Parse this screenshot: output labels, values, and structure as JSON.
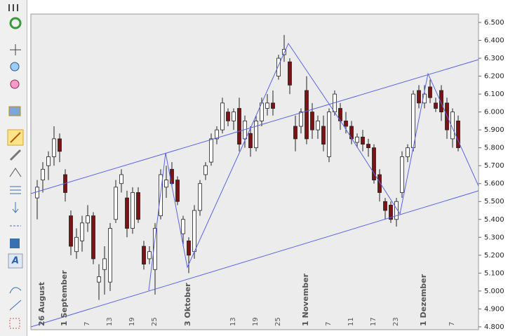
{
  "chart_data": {
    "type": "candlestick",
    "categories": [
      "26 August",
      null,
      null,
      null,
      "1 September",
      null,
      null,
      null,
      "7",
      null,
      null,
      null,
      "13",
      null,
      null,
      null,
      "19",
      null,
      null,
      null,
      "25",
      null,
      null,
      null,
      null,
      null,
      "3 Oktober",
      null,
      null,
      null,
      null,
      null,
      null,
      null,
      "13",
      null,
      null,
      null,
      "19",
      null,
      null,
      null,
      "25",
      null,
      null,
      null,
      null,
      "1 November",
      null,
      null,
      null,
      "7",
      null,
      null,
      null,
      "11",
      null,
      null,
      null,
      "17",
      null,
      null,
      null,
      "23",
      null,
      null,
      null,
      null,
      "1 Dezember",
      null,
      null,
      null,
      null,
      "7",
      null,
      null
    ],
    "ohlc": [
      [
        5.52,
        5.62,
        5.4,
        5.58
      ],
      [
        5.62,
        5.72,
        5.55,
        5.68
      ],
      [
        5.7,
        5.78,
        5.62,
        5.75
      ],
      [
        5.75,
        5.92,
        5.7,
        5.85
      ],
      [
        5.85,
        5.88,
        5.72,
        5.78
      ],
      [
        5.65,
        5.68,
        5.5,
        5.55
      ],
      [
        5.42,
        5.45,
        5.2,
        5.25
      ],
      [
        5.22,
        5.35,
        5.18,
        5.3
      ],
      [
        5.28,
        5.42,
        5.22,
        5.38
      ],
      [
        5.38,
        5.48,
        5.33,
        5.42
      ],
      [
        5.42,
        5.44,
        5.15,
        5.18
      ],
      [
        5.05,
        5.15,
        4.95,
        5.08
      ],
      [
        5.12,
        5.25,
        4.98,
        5.18
      ],
      [
        5.05,
        5.38,
        5.0,
        5.35
      ],
      [
        5.4,
        5.62,
        5.38,
        5.58
      ],
      [
        5.6,
        5.68,
        5.55,
        5.65
      ],
      [
        5.52,
        5.56,
        5.3,
        5.35
      ],
      [
        5.35,
        5.58,
        5.32,
        5.55
      ],
      [
        5.55,
        5.58,
        5.38,
        5.4
      ],
      [
        5.25,
        5.28,
        5.12,
        5.15
      ],
      [
        5.18,
        5.25,
        5.15,
        5.22
      ],
      [
        5.12,
        5.38,
        4.98,
        5.35
      ],
      [
        5.42,
        5.68,
        5.4,
        5.65
      ],
      [
        5.58,
        5.7,
        5.52,
        5.62
      ],
      [
        5.68,
        5.72,
        5.58,
        5.6
      ],
      [
        5.62,
        5.64,
        5.48,
        5.5
      ],
      [
        5.32,
        5.42,
        5.25,
        5.4
      ],
      [
        5.28,
        5.3,
        5.1,
        5.2
      ],
      [
        5.22,
        5.48,
        5.18,
        5.45
      ],
      [
        5.45,
        5.62,
        5.42,
        5.6
      ],
      [
        5.65,
        5.72,
        5.62,
        5.7
      ],
      [
        5.72,
        5.88,
        5.7,
        5.85
      ],
      [
        5.85,
        5.92,
        5.82,
        5.9
      ],
      [
        5.9,
        6.08,
        5.88,
        6.05
      ],
      [
        6.0,
        6.02,
        5.92,
        5.95
      ],
      [
        5.95,
        6.02,
        5.9,
        6.0
      ],
      [
        6.02,
        6.08,
        5.78,
        5.82
      ],
      [
        5.85,
        5.98,
        5.8,
        5.95
      ],
      [
        5.88,
        5.92,
        5.75,
        5.8
      ],
      [
        5.8,
        5.98,
        5.78,
        5.95
      ],
      [
        5.95,
        6.08,
        5.92,
        6.05
      ],
      [
        6.02,
        6.1,
        5.98,
        6.05
      ],
      [
        6.05,
        6.12,
        5.98,
        6.02
      ],
      [
        6.2,
        6.32,
        6.18,
        6.3
      ],
      [
        6.32,
        6.43,
        6.28,
        6.35
      ],
      [
        6.28,
        6.3,
        6.1,
        6.15
      ],
      [
        5.92,
        5.98,
        5.78,
        5.85
      ],
      [
        5.92,
        6.02,
        5.88,
        6.0
      ],
      [
        6.12,
        6.2,
        5.82,
        5.85
      ],
      [
        6.0,
        6.05,
        5.85,
        5.9
      ],
      [
        5.9,
        5.98,
        5.85,
        5.95
      ],
      [
        5.92,
        5.98,
        5.78,
        5.82
      ],
      [
        5.75,
        6.02,
        5.72,
        6.0
      ],
      [
        6.0,
        6.12,
        5.98,
        6.1
      ],
      [
        6.02,
        6.05,
        5.9,
        5.95
      ],
      [
        5.95,
        6.0,
        5.88,
        5.92
      ],
      [
        5.92,
        5.95,
        5.82,
        5.85
      ],
      [
        5.83,
        5.88,
        5.8,
        5.86
      ],
      [
        5.86,
        5.9,
        5.78,
        5.82
      ],
      [
        5.82,
        5.85,
        5.75,
        5.8
      ],
      [
        5.8,
        5.82,
        5.6,
        5.62
      ],
      [
        5.65,
        5.68,
        5.5,
        5.55
      ],
      [
        5.5,
        5.52,
        5.4,
        5.45
      ],
      [
        5.48,
        5.5,
        5.38,
        5.4
      ],
      [
        5.4,
        5.52,
        5.36,
        5.5
      ],
      [
        5.55,
        5.78,
        5.52,
        5.75
      ],
      [
        5.75,
        5.82,
        5.72,
        5.8
      ],
      [
        5.8,
        6.12,
        5.78,
        6.1
      ],
      [
        6.12,
        6.15,
        6.02,
        6.05
      ],
      [
        6.05,
        6.15,
        6.02,
        6.1
      ],
      [
        6.14,
        6.18,
        6.05,
        6.08
      ],
      [
        6.05,
        6.08,
        6.0,
        6.02
      ],
      [
        6.12,
        6.15,
        5.95,
        6.0
      ],
      [
        6.05,
        6.08,
        5.85,
        5.9
      ],
      [
        5.85,
        6.02,
        5.8,
        6.0
      ],
      [
        5.95,
        5.98,
        5.78,
        5.8
      ]
    ],
    "up_color": "#ffffff",
    "down_color": "#7a1414",
    "ylim": [
      4.784,
      6.547
    ],
    "yticks": [
      {
        "value": 4.8,
        "label": "4.800"
      },
      {
        "value": 4.9,
        "label": "4.900"
      },
      {
        "value": 5.0,
        "label": "5.000"
      },
      {
        "value": 5.1,
        "label": "5.100"
      },
      {
        "value": 5.2,
        "label": "5.200"
      },
      {
        "value": 5.3,
        "label": "5.300"
      },
      {
        "value": 5.4,
        "label": "5.400"
      },
      {
        "value": 5.5,
        "label": "5.500"
      },
      {
        "value": 5.6,
        "label": "5.600"
      },
      {
        "value": 5.7,
        "label": "5.700"
      },
      {
        "value": 5.8,
        "label": "5.800"
      },
      {
        "value": 5.9,
        "label": "5.900"
      },
      {
        "value": 6.0,
        "label": "6.000"
      },
      {
        "value": 6.1,
        "label": "6.100"
      },
      {
        "value": 6.2,
        "label": "6.200"
      },
      {
        "value": 6.3,
        "label": "6.300"
      },
      {
        "value": 6.4,
        "label": "6.400"
      },
      {
        "value": 6.5,
        "label": "6.500"
      }
    ]
  }
}
